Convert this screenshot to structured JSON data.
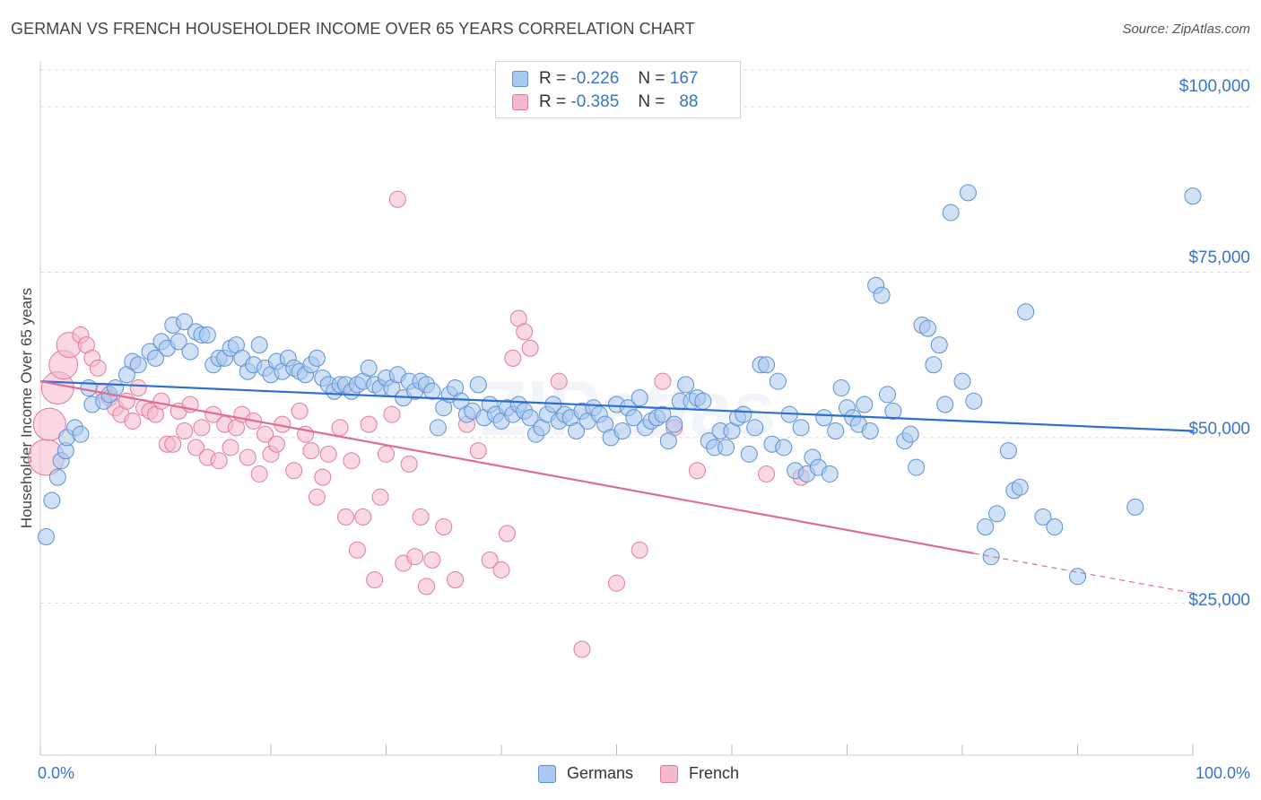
{
  "title": "GERMAN VS FRENCH HOUSEHOLDER INCOME OVER 65 YEARS CORRELATION CHART",
  "source": "Source: ZipAtlas.com",
  "watermark": "ZIPatlas",
  "legend": {
    "germans": {
      "r_label": "R =",
      "r_value": "-0.226",
      "n_label": "N =",
      "n_value": "167"
    },
    "french": {
      "r_label": "R =",
      "r_value": "-0.385",
      "n_label": "N =",
      "n_value": "88"
    }
  },
  "bottom_legend": {
    "germans": "Germans",
    "french": "French"
  },
  "colors": {
    "germans_fill": "#a9c8ef",
    "germans_stroke": "#5b8fd6",
    "germans_line": "#2d6fce",
    "french_fill": "#f6b8cc",
    "french_stroke": "#e07a9d",
    "french_line": "#e06c95",
    "axis_text": "#3b73c8",
    "grid": "#d8d8d8"
  },
  "chart_data": {
    "type": "scatter",
    "title": "GERMAN VS FRENCH HOUSEHOLDER INCOME OVER 65 YEARS CORRELATION CHART",
    "xlabel": "",
    "ylabel": "Householder Income Over 65 years",
    "xlim": [
      0,
      100
    ],
    "ylim": [
      2000,
      108000
    ],
    "x_tick_labels": [
      "0.0%",
      "100.0%"
    ],
    "y_ticks": [
      25000,
      50000,
      75000,
      100000
    ],
    "y_tick_labels": [
      "$25,000",
      "$50,000",
      "$75,000",
      "$100,000"
    ],
    "grid": true,
    "series": [
      {
        "name": "Germans",
        "trend": {
          "x": [
            0,
            100
          ],
          "y": [
            58500,
            51000
          ]
        },
        "points": [
          [
            0.5,
            35000
          ],
          [
            1,
            40500
          ],
          [
            1.5,
            44000
          ],
          [
            1.8,
            46500
          ],
          [
            2.2,
            48000
          ],
          [
            2.3,
            50000
          ],
          [
            3,
            51500
          ],
          [
            3.5,
            50500
          ],
          [
            4.2,
            57500
          ],
          [
            4.5,
            55000
          ],
          [
            5.5,
            55500
          ],
          [
            6,
            56500
          ],
          [
            6.5,
            57500
          ],
          [
            7.5,
            59500
          ],
          [
            8,
            61500
          ],
          [
            8.5,
            61000
          ],
          [
            9.5,
            63000
          ],
          [
            10,
            62000
          ],
          [
            10.5,
            64500
          ],
          [
            11,
            63500
          ],
          [
            11.5,
            67000
          ],
          [
            12,
            64500
          ],
          [
            12.5,
            67500
          ],
          [
            13,
            63000
          ],
          [
            13.5,
            66000
          ],
          [
            14,
            65500
          ],
          [
            14.5,
            65500
          ],
          [
            15,
            61000
          ],
          [
            15.5,
            62000
          ],
          [
            16,
            62000
          ],
          [
            16.5,
            63500
          ],
          [
            17,
            64000
          ],
          [
            17.5,
            62000
          ],
          [
            18,
            60000
          ],
          [
            18.5,
            61000
          ],
          [
            19,
            64000
          ],
          [
            19.5,
            60500
          ],
          [
            20,
            59500
          ],
          [
            20.5,
            61500
          ],
          [
            21,
            60000
          ],
          [
            21.5,
            62000
          ],
          [
            22,
            60500
          ],
          [
            22.5,
            60000
          ],
          [
            23,
            59500
          ],
          [
            23.5,
            61000
          ],
          [
            24,
            62000
          ],
          [
            24.5,
            59000
          ],
          [
            25,
            58000
          ],
          [
            25.5,
            57000
          ],
          [
            26,
            58000
          ],
          [
            26.5,
            58000
          ],
          [
            27,
            57000
          ],
          [
            27.5,
            58000
          ],
          [
            28,
            58500
          ],
          [
            28.5,
            60500
          ],
          [
            29,
            58000
          ],
          [
            29.5,
            57500
          ],
          [
            30,
            59000
          ],
          [
            30.5,
            57500
          ],
          [
            31,
            59500
          ],
          [
            31.5,
            56000
          ],
          [
            32,
            58500
          ],
          [
            32.5,
            57000
          ],
          [
            33,
            58500
          ],
          [
            33.5,
            58000
          ],
          [
            34,
            57000
          ],
          [
            34.5,
            51500
          ],
          [
            35,
            54500
          ],
          [
            35.5,
            56500
          ],
          [
            36,
            57500
          ],
          [
            36.5,
            55500
          ],
          [
            37,
            53500
          ],
          [
            37.5,
            54000
          ],
          [
            38,
            58000
          ],
          [
            38.5,
            53000
          ],
          [
            39,
            55000
          ],
          [
            39.5,
            53500
          ],
          [
            40,
            52500
          ],
          [
            40.5,
            54500
          ],
          [
            41,
            53500
          ],
          [
            41.5,
            55000
          ],
          [
            42,
            54000
          ],
          [
            42.5,
            53000
          ],
          [
            43,
            50500
          ],
          [
            43.5,
            51500
          ],
          [
            44,
            53500
          ],
          [
            44.5,
            55000
          ],
          [
            45,
            52500
          ],
          [
            45.5,
            53500
          ],
          [
            46,
            53000
          ],
          [
            46.5,
            51000
          ],
          [
            47,
            54000
          ],
          [
            47.5,
            52500
          ],
          [
            48,
            54500
          ],
          [
            48.5,
            53500
          ],
          [
            49,
            52000
          ],
          [
            49.5,
            50000
          ],
          [
            50,
            55000
          ],
          [
            50.5,
            51000
          ],
          [
            51,
            54500
          ],
          [
            51.5,
            53000
          ],
          [
            52,
            56000
          ],
          [
            52.5,
            51500
          ],
          [
            53,
            52500
          ],
          [
            53.5,
            53000
          ],
          [
            54,
            53500
          ],
          [
            54.5,
            49500
          ],
          [
            55,
            52000
          ],
          [
            55.5,
            55500
          ],
          [
            56,
            58000
          ],
          [
            56.5,
            55500
          ],
          [
            57,
            56000
          ],
          [
            57.5,
            55500
          ],
          [
            58,
            49500
          ],
          [
            58.5,
            48500
          ],
          [
            59,
            51000
          ],
          [
            59.5,
            48500
          ],
          [
            60,
            51000
          ],
          [
            60.5,
            53000
          ],
          [
            61,
            53500
          ],
          [
            61.5,
            47500
          ],
          [
            62,
            51500
          ],
          [
            62.5,
            61000
          ],
          [
            63,
            61000
          ],
          [
            63.5,
            49000
          ],
          [
            64,
            58500
          ],
          [
            64.5,
            48500
          ],
          [
            65,
            53500
          ],
          [
            65.5,
            45000
          ],
          [
            66,
            51500
          ],
          [
            66.5,
            44500
          ],
          [
            67,
            47000
          ],
          [
            67.5,
            45500
          ],
          [
            68,
            53000
          ],
          [
            68.5,
            44500
          ],
          [
            69,
            51000
          ],
          [
            69.5,
            57500
          ],
          [
            70,
            54500
          ],
          [
            70.5,
            53000
          ],
          [
            71,
            52000
          ],
          [
            71.5,
            55000
          ],
          [
            72,
            51000
          ],
          [
            72.5,
            73000
          ],
          [
            73,
            71500
          ],
          [
            73.5,
            56500
          ],
          [
            74,
            54000
          ],
          [
            75,
            49500
          ],
          [
            75.5,
            50500
          ],
          [
            76,
            45500
          ],
          [
            76.5,
            67000
          ],
          [
            77,
            66500
          ],
          [
            77.5,
            61000
          ],
          [
            78,
            64000
          ],
          [
            78.5,
            55000
          ],
          [
            79,
            84000
          ],
          [
            80,
            58500
          ],
          [
            80.5,
            87000
          ],
          [
            81,
            55500
          ],
          [
            82,
            36500
          ],
          [
            82.5,
            32000
          ],
          [
            83,
            38500
          ],
          [
            84,
            48000
          ],
          [
            84.5,
            42000
          ],
          [
            85,
            42500
          ],
          [
            85.5,
            69000
          ],
          [
            87,
            38000
          ],
          [
            88,
            36500
          ],
          [
            90,
            29000
          ],
          [
            95,
            39500
          ],
          [
            100,
            86500
          ]
        ]
      },
      {
        "name": "French",
        "trend": {
          "x": [
            0,
            81
          ],
          "y": [
            58500,
            32500
          ]
        },
        "trend_dashed": {
          "x": [
            81,
            100
          ],
          "y": [
            32500,
            26500
          ]
        },
        "points": [
          [
            0.5,
            47000
          ],
          [
            0.8,
            52000
          ],
          [
            1.5,
            57500
          ],
          [
            2,
            61000
          ],
          [
            2.5,
            64000
          ],
          [
            3.5,
            65500
          ],
          [
            4,
            64000
          ],
          [
            4.5,
            62000
          ],
          [
            5,
            60500
          ],
          [
            5.5,
            57000
          ],
          [
            6,
            56000
          ],
          [
            6.5,
            54500
          ],
          [
            7,
            53500
          ],
          [
            7.5,
            55500
          ],
          [
            8,
            52500
          ],
          [
            8.5,
            57500
          ],
          [
            9,
            54500
          ],
          [
            9.5,
            54000
          ],
          [
            10,
            53500
          ],
          [
            10.5,
            55500
          ],
          [
            11,
            49000
          ],
          [
            11.5,
            49000
          ],
          [
            12,
            54000
          ],
          [
            12.5,
            51000
          ],
          [
            13,
            55000
          ],
          [
            13.5,
            48500
          ],
          [
            14,
            51500
          ],
          [
            14.5,
            47000
          ],
          [
            15,
            53500
          ],
          [
            15.5,
            46500
          ],
          [
            16,
            52000
          ],
          [
            16.5,
            48500
          ],
          [
            17,
            51500
          ],
          [
            17.5,
            53500
          ],
          [
            18,
            47000
          ],
          [
            18.5,
            52500
          ],
          [
            19,
            44500
          ],
          [
            19.5,
            50500
          ],
          [
            20,
            47500
          ],
          [
            20.5,
            49000
          ],
          [
            21,
            52000
          ],
          [
            22,
            45000
          ],
          [
            22.5,
            54000
          ],
          [
            23,
            50500
          ],
          [
            23.5,
            48000
          ],
          [
            24,
            41000
          ],
          [
            24.5,
            44000
          ],
          [
            25,
            47500
          ],
          [
            26,
            51500
          ],
          [
            26.5,
            38000
          ],
          [
            27,
            46500
          ],
          [
            27.5,
            33000
          ],
          [
            28,
            38000
          ],
          [
            28.5,
            52000
          ],
          [
            29,
            28500
          ],
          [
            29.5,
            41000
          ],
          [
            30,
            47500
          ],
          [
            30.5,
            53500
          ],
          [
            31,
            86000
          ],
          [
            31.5,
            31000
          ],
          [
            32,
            46000
          ],
          [
            32.5,
            32000
          ],
          [
            33,
            38000
          ],
          [
            33.5,
            27500
          ],
          [
            34,
            31500
          ],
          [
            35,
            36500
          ],
          [
            36,
            28500
          ],
          [
            37,
            52000
          ],
          [
            38,
            48000
          ],
          [
            39,
            31500
          ],
          [
            40,
            30000
          ],
          [
            40.5,
            35500
          ],
          [
            41,
            62000
          ],
          [
            41.5,
            68000
          ],
          [
            42,
            66000
          ],
          [
            42.5,
            63500
          ],
          [
            45,
            58500
          ],
          [
            47,
            18000
          ],
          [
            50,
            28000
          ],
          [
            52,
            33000
          ],
          [
            54,
            58500
          ],
          [
            55,
            51500
          ],
          [
            57,
            45000
          ],
          [
            63,
            44500
          ],
          [
            66,
            44000
          ]
        ]
      }
    ]
  }
}
